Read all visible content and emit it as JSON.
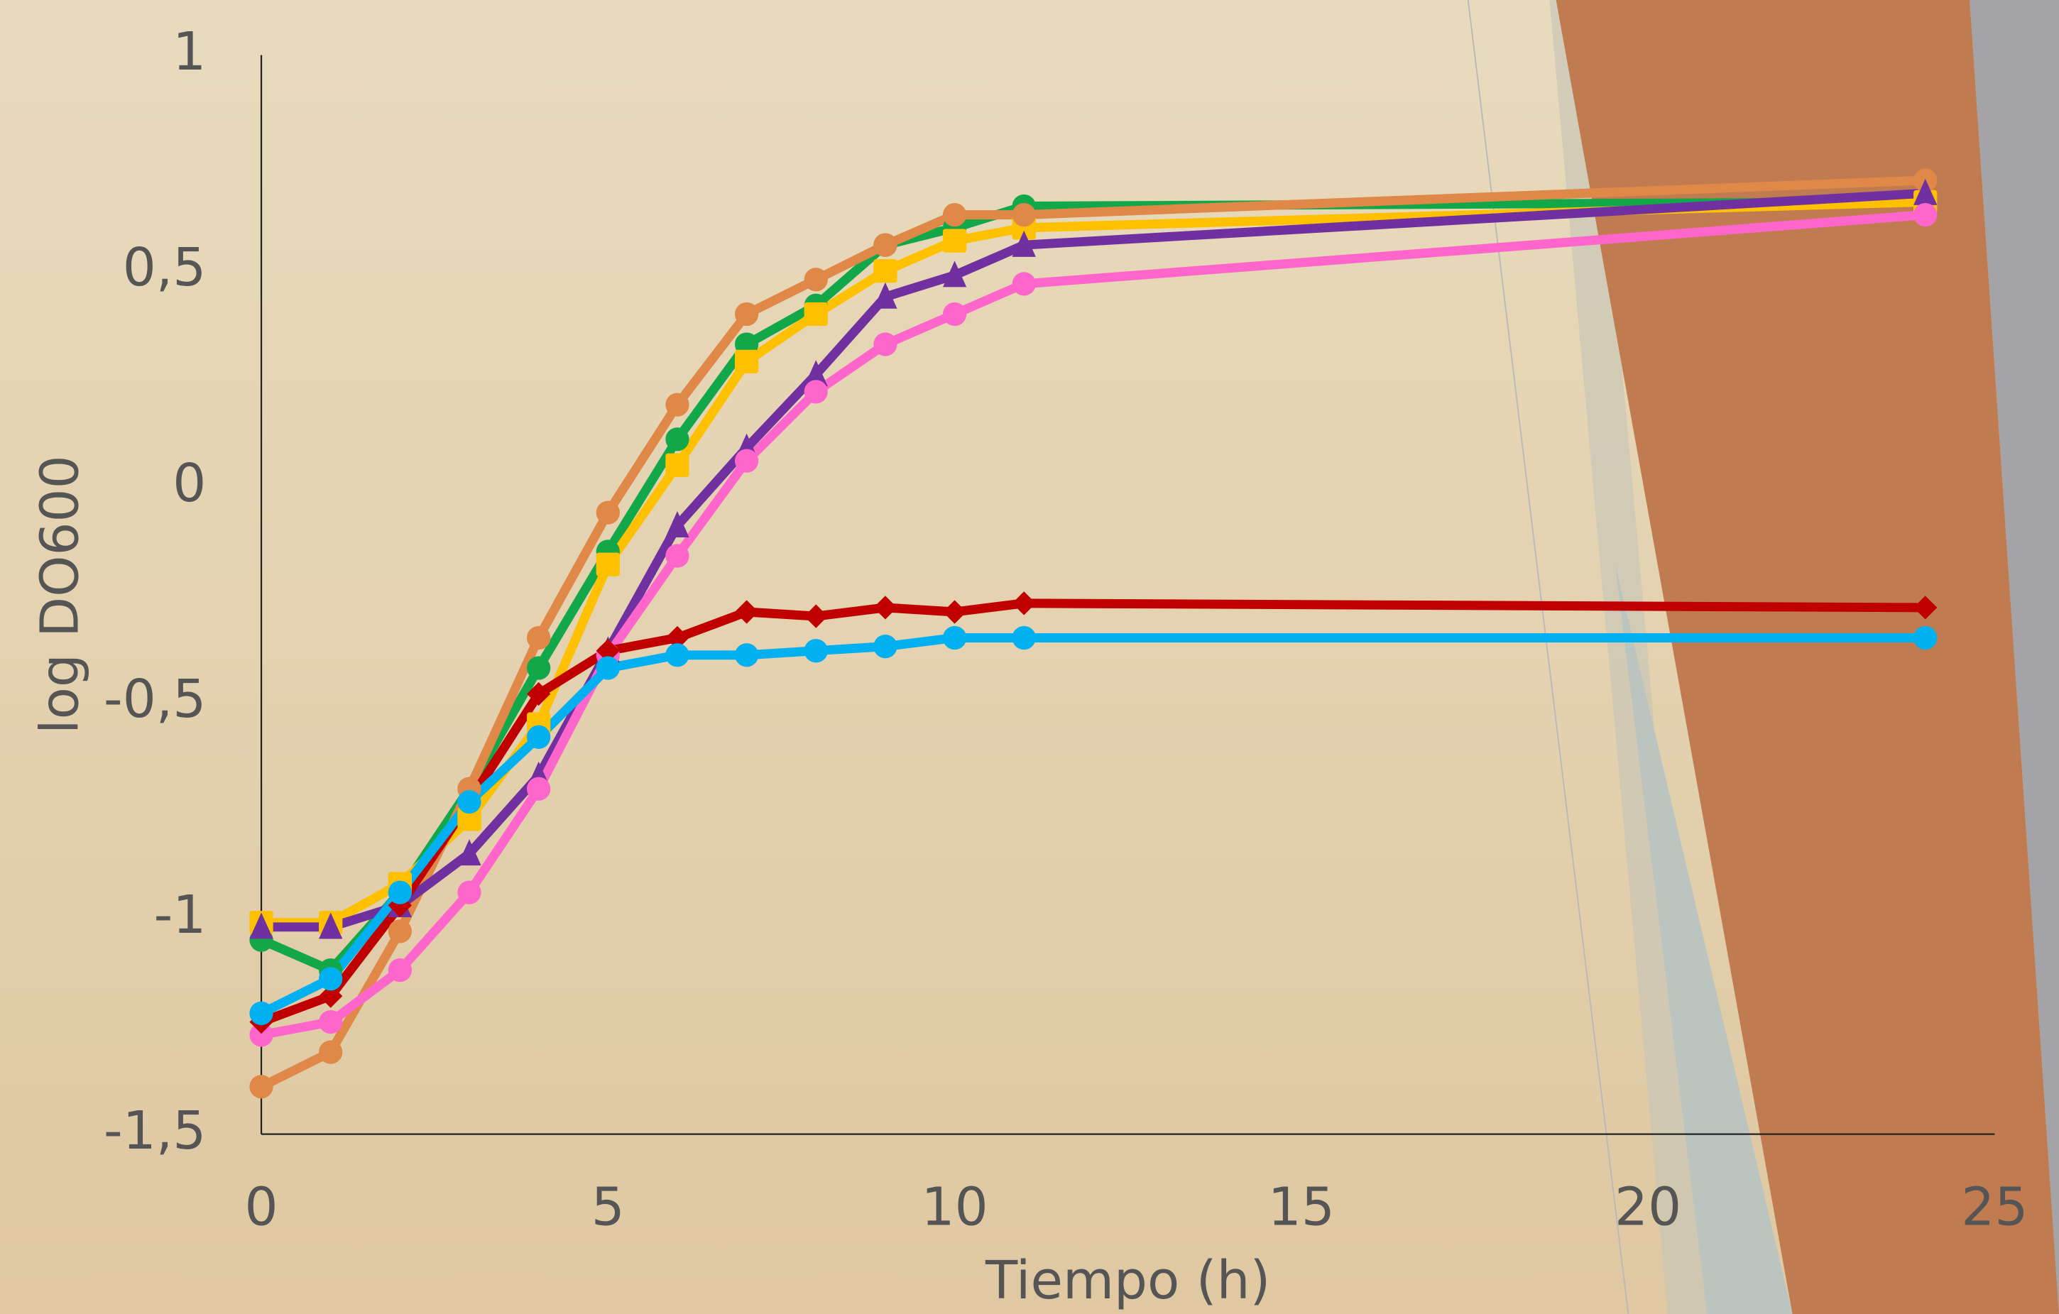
{
  "chart_data": {
    "type": "line",
    "x_label": "Tiempo (h)",
    "y_label": "log DO600",
    "x": [
      0,
      1,
      2,
      3,
      4,
      5,
      6,
      7,
      8,
      9,
      10,
      11,
      24
    ],
    "xlim": [
      0,
      25
    ],
    "xticks": [
      0,
      5,
      10,
      15,
      20,
      25
    ],
    "ylim": [
      -1.5,
      1
    ],
    "yticks": [
      {
        "value": -1.5,
        "label": "-1,5"
      },
      -1,
      {
        "value": -0.5,
        "label": "-0,5"
      },
      0,
      {
        "value": 0.5,
        "label": "0,5"
      },
      1
    ],
    "grid": false,
    "series": [
      {
        "color": "#12a84a",
        "marker": "circle",
        "values": [
          -1.05,
          -1.12,
          -0.94,
          -0.7,
          -0.42,
          -0.15,
          0.11,
          0.33,
          0.42,
          0.56,
          0.6,
          0.65,
          0.66
        ]
      },
      {
        "color": "#ffc000",
        "marker": "square",
        "values": [
          -1.01,
          -1.01,
          -0.92,
          -0.77,
          -0.55,
          -0.18,
          0.05,
          0.29,
          0.4,
          0.5,
          0.57,
          0.6,
          0.66
        ]
      },
      {
        "color": "#e08848",
        "marker": "circle",
        "values": [
          -1.39,
          -1.31,
          -1.03,
          -0.7,
          -0.35,
          -0.06,
          0.19,
          0.4,
          0.48,
          0.56,
          0.63,
          0.63,
          0.71
        ]
      },
      {
        "color": "#7030a0",
        "marker": "triangle",
        "values": [
          -1.02,
          -1.02,
          -0.97,
          -0.85,
          -0.67,
          -0.38,
          -0.09,
          0.09,
          0.26,
          0.44,
          0.49,
          0.56,
          0.68
        ]
      },
      {
        "color": "#ff66cc",
        "marker": "circle",
        "values": [
          -1.27,
          -1.24,
          -1.12,
          -0.94,
          -0.7,
          -0.39,
          -0.16,
          0.06,
          0.22,
          0.33,
          0.4,
          0.47,
          0.63
        ]
      },
      {
        "color": "#c00000",
        "marker": "diamond",
        "values": [
          -1.24,
          -1.18,
          -0.97,
          -0.73,
          -0.48,
          -0.38,
          -0.35,
          -0.29,
          -0.3,
          -0.28,
          -0.29,
          -0.27,
          -0.28
        ]
      },
      {
        "color": "#00b0f0",
        "marker": "circle",
        "values": [
          -1.22,
          -1.14,
          -0.94,
          -0.73,
          -0.58,
          -0.42,
          -0.39,
          -0.39,
          -0.38,
          -0.37,
          -0.35,
          -0.35,
          -0.35
        ]
      }
    ]
  }
}
